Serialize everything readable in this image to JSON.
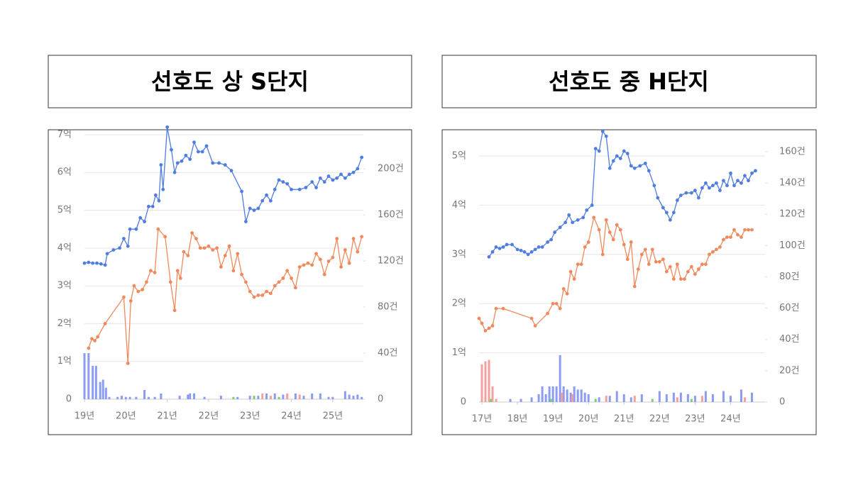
{
  "chart_data": [
    {
      "type": "line",
      "title": "선호도 상 S단지",
      "xlim": [
        2019,
        2025.74
      ],
      "xticks": [
        {
          "value": 2019,
          "label": "19년"
        },
        {
          "value": 2020,
          "label": "20년"
        },
        {
          "value": 2021,
          "label": "21년"
        },
        {
          "value": 2022,
          "label": "22년"
        },
        {
          "value": 2023,
          "label": "23년"
        },
        {
          "value": 2024,
          "label": "24년"
        },
        {
          "value": 2025,
          "label": "25년"
        }
      ],
      "ylim": [
        0,
        7.1
      ],
      "yticks": [
        0,
        {
          "value": 1,
          "label": "1억"
        },
        {
          "value": 2,
          "label": "2억"
        },
        {
          "value": 3,
          "label": "3억"
        },
        {
          "value": 4,
          "label": "4억"
        },
        {
          "value": 5,
          "label": "5억"
        },
        {
          "value": 6,
          "label": "6억"
        },
        {
          "value": 7,
          "label": "7억"
        }
      ],
      "y2lim": [
        0,
        233
      ],
      "y2ticks": [
        0,
        {
          "value": 40,
          "label": "40건"
        },
        {
          "value": 80,
          "label": "80건"
        },
        {
          "value": 120,
          "label": "120건"
        },
        {
          "value": 160,
          "label": "160건"
        },
        {
          "value": 200,
          "label": "200건"
        }
      ],
      "grid": true,
      "series": [
        {
          "type": "line",
          "color": "#4f7de0",
          "x": [
            2019.0,
            2019.1,
            2019.2,
            2019.3,
            2019.4,
            2019.5,
            2019.55,
            2019.7,
            2019.85,
            2019.95,
            2020.05,
            2020.1,
            2020.25,
            2020.35,
            2020.45,
            2020.55,
            2020.65,
            2020.72,
            2020.8,
            2020.85,
            2020.9,
            2021.0,
            2021.1,
            2021.18,
            2021.25,
            2021.35,
            2021.45,
            2021.55,
            2021.65,
            2021.75,
            2021.85,
            2021.95,
            2022.1,
            2022.25,
            2022.4,
            2022.55,
            2022.8,
            2022.9,
            2023.0,
            2023.1,
            2023.2,
            2023.3,
            2023.4,
            2023.5,
            2023.6,
            2023.7,
            2023.8,
            2023.9,
            2024.0,
            2024.2,
            2024.35,
            2024.5,
            2024.6,
            2024.7,
            2024.8,
            2024.9,
            2025.0,
            2025.1,
            2025.2,
            2025.3,
            2025.4,
            2025.5,
            2025.6,
            2025.7
          ],
          "values": [
            3.6,
            3.62,
            3.6,
            3.6,
            3.58,
            3.55,
            3.85,
            3.95,
            4.0,
            4.25,
            4.05,
            4.5,
            4.5,
            4.8,
            4.7,
            5.1,
            5.1,
            5.4,
            5.25,
            6.2,
            5.55,
            7.2,
            6.6,
            6.0,
            6.25,
            6.3,
            6.45,
            6.35,
            6.8,
            6.55,
            6.55,
            6.7,
            6.25,
            6.25,
            6.2,
            6.05,
            5.5,
            4.7,
            5.05,
            5.0,
            5.05,
            5.25,
            5.4,
            5.25,
            5.55,
            5.8,
            5.75,
            5.7,
            5.55,
            5.55,
            5.6,
            5.75,
            5.6,
            5.85,
            5.75,
            5.9,
            5.8,
            5.85,
            5.95,
            5.85,
            5.95,
            6.0,
            6.1,
            6.4
          ]
        },
        {
          "type": "line",
          "color": "#f08a5d",
          "x": [
            2019.1,
            2019.18,
            2019.25,
            2019.32,
            2019.5,
            2019.95,
            2020.05,
            2020.12,
            2020.2,
            2020.3,
            2020.4,
            2020.5,
            2020.6,
            2020.7,
            2020.78,
            2020.95,
            2021.08,
            2021.18,
            2021.25,
            2021.32,
            2021.4,
            2021.5,
            2021.6,
            2021.7,
            2021.8,
            2021.9,
            2022.0,
            2022.1,
            2022.2,
            2022.3,
            2022.4,
            2022.5,
            2022.6,
            2022.7,
            2022.8,
            2022.9,
            2023.0,
            2023.1,
            2023.2,
            2023.3,
            2023.4,
            2023.5,
            2023.6,
            2023.7,
            2023.8,
            2023.9,
            2024.0,
            2024.1,
            2024.2,
            2024.3,
            2024.4,
            2024.5,
            2024.6,
            2024.7,
            2024.8,
            2024.9,
            2025.0,
            2025.1,
            2025.2,
            2025.3,
            2025.4,
            2025.5,
            2025.6,
            2025.7
          ],
          "values": [
            1.35,
            1.6,
            1.55,
            1.65,
            2.0,
            2.7,
            0.95,
            2.6,
            3.0,
            2.85,
            2.9,
            3.1,
            3.4,
            3.35,
            4.5,
            4.3,
            3.1,
            2.35,
            3.4,
            3.2,
            3.9,
            3.8,
            4.4,
            4.25,
            4.0,
            4.0,
            4.05,
            3.95,
            4.0,
            3.5,
            3.8,
            4.05,
            3.4,
            3.85,
            3.3,
            3.1,
            2.85,
            2.7,
            2.75,
            2.75,
            2.85,
            2.8,
            3.0,
            3.1,
            3.2,
            3.4,
            3.2,
            2.95,
            3.5,
            3.55,
            3.6,
            3.55,
            3.85,
            3.7,
            3.3,
            3.65,
            3.75,
            4.25,
            3.5,
            3.95,
            3.6,
            4.25,
            3.9,
            4.3
          ]
        },
        {
          "type": "bar",
          "axis": "y2",
          "color": "#8c9cf2",
          "x": [
            2019.0,
            2019.1,
            2019.2,
            2019.28,
            2019.38,
            2019.45,
            2019.52,
            2019.6,
            2019.8,
            2019.9,
            2020.0,
            2020.1,
            2020.25,
            2020.45,
            2020.55,
            2020.7,
            2020.85,
            2021.3,
            2021.5,
            2021.55,
            2021.65,
            2021.9,
            2022.3,
            2022.7,
            2023.0,
            2023.2,
            2023.4,
            2023.6,
            2023.8,
            2024.1,
            2024.3,
            2024.5,
            2024.7,
            2024.9,
            2025.0,
            2025.3,
            2025.4,
            2025.5,
            2025.6,
            2025.7
          ],
          "values": [
            40,
            40,
            29,
            29,
            15,
            17,
            10,
            2,
            2,
            3,
            2,
            2,
            2,
            8,
            2,
            2,
            5,
            3,
            4,
            5,
            5,
            2,
            3,
            2,
            3,
            3,
            5,
            5,
            4,
            5,
            3,
            5,
            5,
            2,
            2,
            7,
            4,
            3,
            4,
            2
          ]
        },
        {
          "type": "bar",
          "axis": "y2",
          "color": "#f4a0a0",
          "x": [
            2023.3,
            2023.5,
            2023.9,
            2024.2
          ],
          "values": [
            5,
            3,
            5,
            4
          ]
        },
        {
          "type": "bar",
          "axis": "y2",
          "color": "#7ccf6e",
          "x": [
            2022.6,
            2023.1,
            2023.7
          ],
          "values": [
            2,
            3,
            2
          ]
        }
      ]
    },
    {
      "type": "line",
      "title": "선호도 중 H단지",
      "xlim": [
        2016.92,
        2024.97
      ],
      "xticks": [
        {
          "value": 2017,
          "label": "17년"
        },
        {
          "value": 2018,
          "label": "18년"
        },
        {
          "value": 2019,
          "label": "19년"
        },
        {
          "value": 2020,
          "label": "20년"
        },
        {
          "value": 2021,
          "label": "21년"
        },
        {
          "value": 2022,
          "label": "22년"
        },
        {
          "value": 2023,
          "label": "23년"
        },
        {
          "value": 2024,
          "label": "24년"
        }
      ],
      "ylim": [
        0,
        5.5
      ],
      "yticks": [
        0,
        {
          "value": 1,
          "label": "1억"
        },
        {
          "value": 2,
          "label": "2억"
        },
        {
          "value": 3,
          "label": "3억"
        },
        {
          "value": 4,
          "label": "4억"
        },
        {
          "value": 5,
          "label": "5억"
        }
      ],
      "y2lim": [
        0,
        173
      ],
      "y2ticks": [
        0,
        {
          "value": 20,
          "label": "20건"
        },
        {
          "value": 40,
          "label": "40건"
        },
        {
          "value": 60,
          "label": "60건"
        },
        {
          "value": 80,
          "label": "80건"
        },
        {
          "value": 100,
          "label": "100건"
        },
        {
          "value": 120,
          "label": "120건"
        },
        {
          "value": 140,
          "label": "140건"
        },
        {
          "value": 160,
          "label": "160건"
        }
      ],
      "grid": true,
      "series": [
        {
          "type": "line",
          "color": "#4f7de0",
          "x": [
            2017.2,
            2017.3,
            2017.4,
            2017.5,
            2017.6,
            2017.7,
            2017.85,
            2018.0,
            2018.1,
            2018.2,
            2018.3,
            2018.4,
            2018.5,
            2018.6,
            2018.7,
            2018.85,
            2018.95,
            2019.05,
            2019.2,
            2019.35,
            2019.45,
            2019.55,
            2019.7,
            2019.85,
            2019.95,
            2020.1,
            2020.2,
            2020.3,
            2020.4,
            2020.5,
            2020.6,
            2020.7,
            2020.8,
            2020.9,
            2021.0,
            2021.1,
            2021.2,
            2021.3,
            2021.45,
            2021.6,
            2021.7,
            2021.85,
            2021.95,
            2022.1,
            2022.2,
            2022.3,
            2022.4,
            2022.5,
            2022.6,
            2022.75,
            2022.9,
            2023.0,
            2023.1,
            2023.2,
            2023.3,
            2023.4,
            2023.5,
            2023.6,
            2023.7,
            2023.8,
            2023.9,
            2024.0,
            2024.1,
            2024.2,
            2024.3,
            2024.4,
            2024.5,
            2024.6,
            2024.7
          ],
          "values": [
            2.95,
            3.05,
            3.15,
            3.12,
            3.15,
            3.2,
            3.2,
            3.1,
            3.08,
            3.05,
            3.0,
            3.05,
            3.1,
            3.15,
            3.15,
            3.25,
            3.3,
            3.45,
            3.55,
            3.65,
            3.8,
            3.65,
            3.7,
            3.75,
            3.9,
            4.0,
            5.15,
            5.1,
            5.5,
            5.4,
            4.75,
            4.9,
            5.0,
            4.95,
            5.1,
            5.05,
            4.8,
            4.75,
            4.8,
            4.85,
            4.7,
            4.4,
            4.15,
            3.95,
            3.85,
            3.7,
            3.85,
            4.1,
            4.2,
            4.25,
            4.25,
            4.3,
            4.15,
            4.35,
            4.45,
            4.35,
            4.4,
            4.45,
            4.3,
            4.5,
            4.4,
            4.65,
            4.4,
            4.5,
            4.45,
            4.6,
            4.5,
            4.65,
            4.7
          ]
        },
        {
          "type": "line",
          "color": "#f08a5d",
          "x": [
            2016.92,
            2017.0,
            2017.1,
            2017.2,
            2017.3,
            2017.4,
            2017.6,
            2018.4,
            2018.5,
            2018.85,
            2019.0,
            2019.1,
            2019.2,
            2019.3,
            2019.4,
            2019.5,
            2019.6,
            2019.7,
            2019.8,
            2019.9,
            2020.0,
            2020.15,
            2020.3,
            2020.4,
            2020.5,
            2020.6,
            2020.7,
            2020.8,
            2020.9,
            2021.0,
            2021.1,
            2021.2,
            2021.3,
            2021.4,
            2021.5,
            2021.6,
            2021.7,
            2021.8,
            2021.9,
            2022.0,
            2022.1,
            2022.2,
            2022.3,
            2022.4,
            2022.5,
            2022.6,
            2022.7,
            2022.8,
            2022.9,
            2023.0,
            2023.1,
            2023.2,
            2023.3,
            2023.4,
            2023.5,
            2023.6,
            2023.7,
            2023.8,
            2023.9,
            2024.0,
            2024.1,
            2024.2,
            2024.3,
            2024.4,
            2024.5,
            2024.6
          ],
          "values": [
            1.7,
            1.6,
            1.45,
            1.5,
            1.55,
            1.9,
            1.9,
            1.7,
            1.55,
            1.8,
            2.0,
            2.0,
            1.9,
            2.3,
            2.2,
            2.65,
            2.5,
            2.8,
            2.8,
            3.15,
            3.25,
            3.75,
            3.5,
            3.0,
            3.7,
            3.45,
            3.3,
            3.6,
            3.5,
            3.2,
            2.9,
            3.25,
            2.35,
            2.7,
            3.0,
            3.1,
            2.8,
            3.1,
            2.85,
            2.85,
            2.9,
            2.65,
            2.75,
            2.5,
            2.8,
            2.5,
            2.5,
            2.65,
            2.75,
            2.6,
            2.7,
            2.8,
            2.8,
            3.0,
            3.05,
            3.1,
            3.15,
            3.3,
            3.35,
            3.35,
            3.5,
            3.4,
            3.35,
            3.5,
            3.5,
            3.5
          ]
        },
        {
          "type": "bar",
          "axis": "y2",
          "color": "#8c9cf2",
          "x": [
            2017.8,
            2018.1,
            2018.4,
            2018.6,
            2018.7,
            2018.8,
            2018.9,
            2019.0,
            2019.1,
            2019.2,
            2019.3,
            2019.4,
            2019.5,
            2019.6,
            2019.7,
            2019.8,
            2019.9,
            2020.0,
            2020.3,
            2020.6,
            2020.8,
            2021.0,
            2021.2,
            2021.5,
            2022.0,
            2022.2,
            2022.4,
            2022.6,
            2022.8,
            2023.0,
            2023.3,
            2023.5,
            2023.8,
            2024.0,
            2024.3,
            2024.6
          ],
          "values": [
            2,
            2,
            3,
            5,
            10,
            5,
            10,
            10,
            10,
            30,
            10,
            8,
            6,
            10,
            8,
            8,
            6,
            5,
            3,
            4,
            7,
            5,
            3,
            5,
            7,
            5,
            6,
            6,
            5,
            4,
            7,
            5,
            7,
            4,
            8,
            6
          ]
        },
        {
          "type": "bar",
          "axis": "y2",
          "color": "#f4a0a0",
          "x": [
            2017.0,
            2017.1,
            2017.2,
            2017.3,
            2017.4,
            2019.25,
            2019.55,
            2020.5,
            2021.3,
            2022.5,
            2023.2,
            2024.4
          ],
          "values": [
            24,
            26,
            27,
            10,
            2,
            6,
            5,
            4,
            4,
            3,
            4,
            3
          ]
        },
        {
          "type": "bar",
          "axis": "y2",
          "color": "#7ccf6e",
          "x": [
            2017.25,
            2018.95,
            2020.2,
            2021.8,
            2022.9
          ],
          "values": [
            2,
            2,
            2,
            2,
            2
          ]
        }
      ]
    }
  ]
}
